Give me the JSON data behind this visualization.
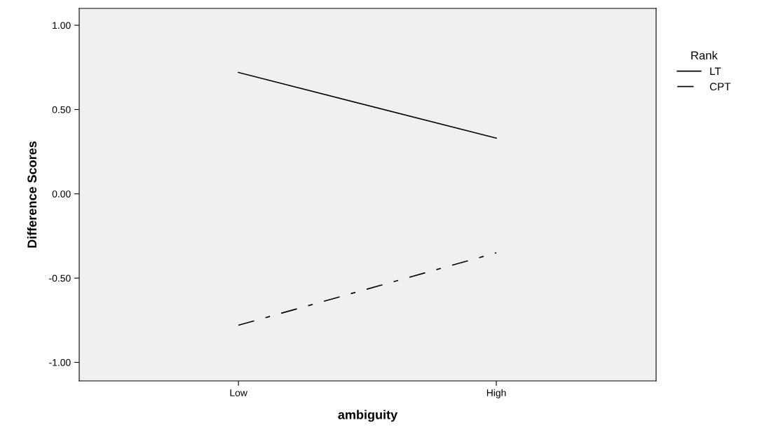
{
  "chart_data": {
    "type": "line",
    "xlabel": "ambiguity",
    "ylabel": "Difference Scores",
    "legend_title": "Rank",
    "categories": [
      "Low",
      "High"
    ],
    "series": [
      {
        "name": "LT",
        "color": "#000000",
        "values": [
          0.72,
          0.33
        ],
        "line_style": "solid"
      },
      {
        "name": "CPT",
        "color": "#000000",
        "values": [
          -0.78,
          -0.35
        ],
        "line_style": "dashdot"
      }
    ],
    "ylim": [
      -1.11,
      1.1
    ],
    "yticks": [
      {
        "value": -1,
        "label": "-1.00"
      },
      {
        "value": -0.5,
        "label": "-0.50"
      },
      {
        "value": 0,
        "label": "0.00"
      },
      {
        "value": 0.5,
        "label": "0.50"
      },
      {
        "value": 1,
        "label": "1.00"
      }
    ],
    "grid": false,
    "legend": "right",
    "marker": "none"
  }
}
